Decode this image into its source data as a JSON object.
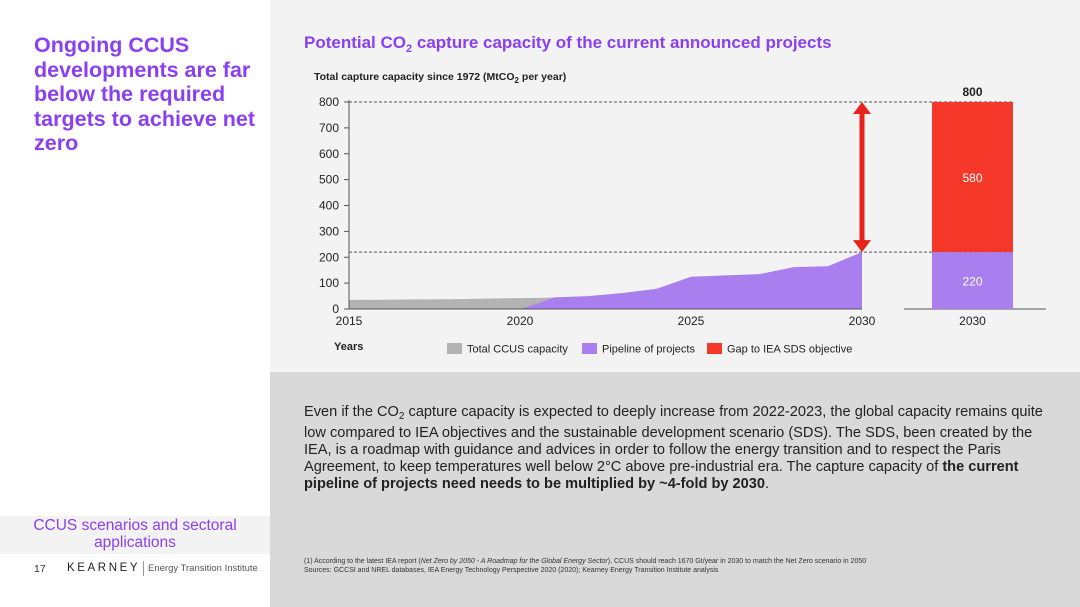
{
  "sidebar": {
    "headline": "Ongoing CCUS developments are far below the required targets to achieve net zero",
    "section_label": "CCUS scenarios and sectoral applications",
    "page_number": "17",
    "brand": "KEARNEY",
    "institute": "Energy Transition Institute"
  },
  "chart_title": {
    "prefix": "Potential CO",
    "subscript": "2",
    "suffix": " capture capacity of the current announced projects"
  },
  "chart_ylabel": {
    "prefix": "Total capture capacity since 1972 (MtCO",
    "subscript": "2",
    "suffix": " per year)"
  },
  "colors": {
    "accent": "#8a3ff0",
    "total_ccus": "#b3b3b3",
    "pipeline": "#a97ff0",
    "gap": "#f5382a",
    "arrow": "#e8231b"
  },
  "chart_data": [
    {
      "type": "area",
      "xlabel": "Years",
      "ylim": [
        0,
        800
      ],
      "xlim": [
        2015,
        2030
      ],
      "yticks": [
        0,
        100,
        200,
        300,
        400,
        500,
        600,
        700,
        800
      ],
      "xticks": [
        2015,
        2020,
        2025,
        2030
      ],
      "grid": false,
      "series": [
        {
          "name": "Total CCUS capacity",
          "color": "#b3b3b3",
          "points": [
            [
              2015,
              35
            ],
            [
              2016,
              36
            ],
            [
              2017,
              37
            ],
            [
              2018,
              38
            ],
            [
              2019,
              40
            ],
            [
              2020,
              42
            ],
            [
              2021,
              44
            ]
          ]
        },
        {
          "name": "Pipeline of projects",
          "color": "#a97ff0",
          "points": [
            [
              2020,
              0
            ],
            [
              2020.5,
              20
            ],
            [
              2021,
              45
            ],
            [
              2022,
              50
            ],
            [
              2023,
              62
            ],
            [
              2024,
              78
            ],
            [
              2025,
              125
            ],
            [
              2026,
              130
            ],
            [
              2027,
              135
            ],
            [
              2028,
              162
            ],
            [
              2029,
              165
            ],
            [
              2030,
              220
            ]
          ]
        }
      ],
      "reference_lines": [
        220,
        800
      ],
      "arrow": {
        "x": 2030,
        "from": 220,
        "to": 800
      }
    },
    {
      "type": "bar",
      "stacked": true,
      "categories": [
        "2030"
      ],
      "total_label": "800",
      "ylim": [
        0,
        800
      ],
      "series": [
        {
          "name": "Pipeline of projects",
          "color": "#a97ff0",
          "values": [
            220
          ],
          "labels": [
            "220"
          ]
        },
        {
          "name": "Gap to IEA SDS objective",
          "color": "#f5382a",
          "values": [
            580
          ],
          "labels": [
            "580"
          ]
        }
      ]
    }
  ],
  "legend": {
    "placement": "bottom",
    "items": [
      {
        "label": "Total CCUS capacity",
        "color": "#b3b3b3"
      },
      {
        "label": "Pipeline of projects",
        "color": "#a97ff0"
      },
      {
        "label": "Gap to IEA SDS objective",
        "color": "#f5382a"
      }
    ]
  },
  "commentary": {
    "part1": "Even if the CO",
    "sub": "2",
    "part2": " capture capacity is expected to deeply increase from 2022-2023, the global capacity remains quite low compared to IEA objectives and the sustainable development scenario (SDS). The SDS, been created by the IEA, is a roadmap with guidance and advices in order to follow the energy transition and to respect the Paris Agreement, to keep temperatures well below 2°C above pre-industrial era. The capture capacity of ",
    "bold": "the current pipeline of projects need needs to be multiplied by ~4-fold by 2030",
    "end": "."
  },
  "footnotes": {
    "line1_a": "(1) According to the latest IEA report (",
    "line1_b": "Net Zero by 2050 - A Roadmap for the Global Energy Sector",
    "line1_c": "), CCUS should reach 1670 Gt/year in 2030 to match the Net Zero scenario in 2050",
    "line2": "Sources: GCCSI and NREL databases, IEA Energy Technology Perspective 2020 (2020); Kearney Energy Transition Institute analysis"
  }
}
